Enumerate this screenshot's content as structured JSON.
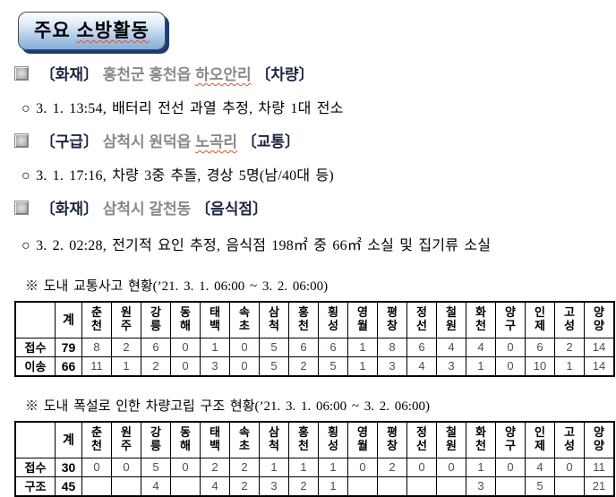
{
  "title": {
    "plain": "주요",
    "marked": "소방활동"
  },
  "incidents": [
    {
      "category": "〔화재〕",
      "location": "홍천군 홍천읍",
      "location_marked": "하오안리",
      "type": "〔차량〕",
      "detail": "○ 3. 1. 13:54, 배터리 전선 과열 추정, 차량 1대 전소"
    },
    {
      "category": "〔구급〕",
      "location": "삼척시 원덕읍",
      "location_marked": "노곡리",
      "type": "〔교통〕",
      "detail": "○ 3. 1. 17:16, 차량 3중 추돌, 경상 5명(남/40대 등)"
    },
    {
      "category": "〔화재〕",
      "location": "삼척시 갈천동",
      "location_marked": "",
      "type": "〔음식점〕",
      "detail": "○ 3. 2. 02:28, 전기적 요인 추정, 음식점 198㎡ 중 66㎡ 소실 및 집기류 소실"
    }
  ],
  "tables": [
    {
      "note": "※ 도내 교통사고 현황(’21. 3. 1. 06:00 ~ 3. 2. 06:00)",
      "corner": "",
      "total_header": "계",
      "regions": [
        "춘천",
        "원주",
        "강릉",
        "동해",
        "태백",
        "속초",
        "삼척",
        "홍천",
        "횡성",
        "영월",
        "평창",
        "정선",
        "철원",
        "화천",
        "양구",
        "인제",
        "고성",
        "양양"
      ],
      "rows": [
        {
          "label": "접수",
          "total": "79",
          "values": [
            "8",
            "2",
            "6",
            "0",
            "1",
            "0",
            "5",
            "6",
            "6",
            "1",
            "8",
            "6",
            "4",
            "4",
            "0",
            "6",
            "2",
            "14"
          ]
        },
        {
          "label": "이송",
          "total": "66",
          "values": [
            "11",
            "1",
            "2",
            "0",
            "3",
            "0",
            "5",
            "2",
            "5",
            "1",
            "3",
            "4",
            "3",
            "1",
            "0",
            "10",
            "1",
            "14"
          ]
        }
      ]
    },
    {
      "note": "※ 도내 폭설로 인한 차량고립 구조 현황(’21. 3. 1. 06:00 ~ 3. 2. 06:00)",
      "corner": "",
      "total_header": "계",
      "regions": [
        "춘천",
        "원주",
        "강릉",
        "동해",
        "태백",
        "속초",
        "삼척",
        "홍천",
        "횡성",
        "영월",
        "평창",
        "정선",
        "철원",
        "화천",
        "양구",
        "인제",
        "고성",
        "양양"
      ],
      "rows": [
        {
          "label": "접수",
          "total": "30",
          "values": [
            "0",
            "0",
            "5",
            "0",
            "2",
            "2",
            "1",
            "1",
            "1",
            "0",
            "2",
            "0",
            "0",
            "1",
            "0",
            "4",
            "0",
            "11"
          ]
        },
        {
          "label": "구조",
          "total": "45",
          "values": [
            "",
            "",
            "4",
            "",
            "4",
            "2",
            "3",
            "2",
            "1",
            "",
            "",
            "",
            "",
            "3",
            "",
            "5",
            "",
            "21"
          ]
        }
      ]
    }
  ],
  "colors": {
    "title_gradient_bottom": "#84aed9",
    "title_shadow_navy": "#1c3c6e",
    "category_navy": "#1a2440",
    "location_gray": "#898989",
    "wavy_underline_red": "#d4502a"
  }
}
